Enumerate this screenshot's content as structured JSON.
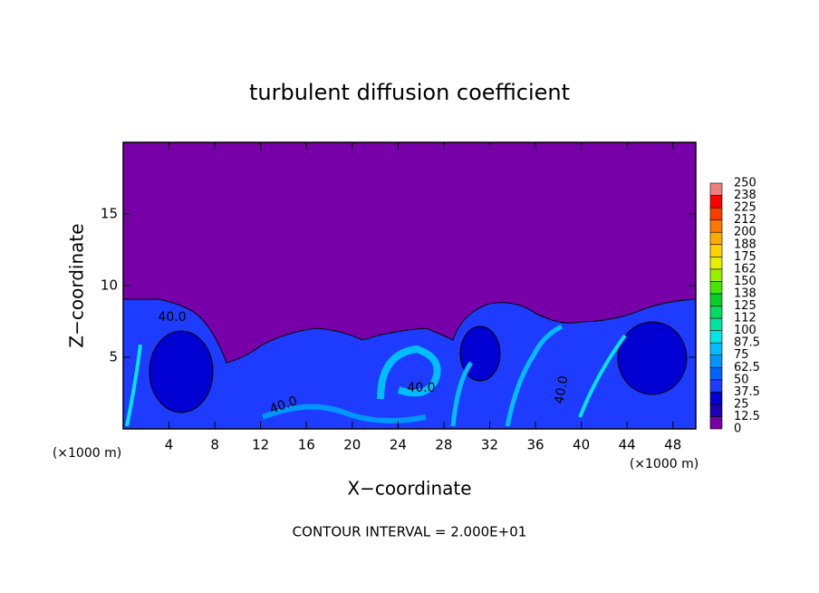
{
  "chart_data": {
    "type": "contour",
    "title": "turbulent diffusion coefficient",
    "x_label": "X−coordinate",
    "y_label": "Z−coordinate",
    "x_unit_left": "(×1000 m)",
    "x_unit_right": "(×1000 m)",
    "footer": "CONTOUR INTERVAL = 2.000E+01",
    "contour_labels": [
      "40.0",
      "40.0",
      "40.0",
      "40.0"
    ],
    "xlim": [
      0,
      50
    ],
    "xticks": [
      4,
      8,
      12,
      16,
      20,
      24,
      28,
      32,
      36,
      40,
      44,
      48
    ],
    "ylim": [
      0,
      20
    ],
    "yticks": [
      5,
      10,
      15
    ],
    "colorbar_levels": [
      0,
      12.5,
      25,
      37.5,
      50,
      62.5,
      75,
      87.5,
      100,
      {
        "value": 112.5,
        "label": "112"
      },
      125,
      {
        "value": 137.5,
        "label": "138"
      },
      150,
      {
        "value": 162.5,
        "label": "162"
      },
      175,
      {
        "value": 187.5,
        "label": "188"
      },
      200,
      {
        "value": 212.5,
        "label": "212"
      },
      225,
      {
        "value": 237.5,
        "label": "238"
      },
      250
    ],
    "colorbar_colors": [
      "#7800a8",
      "#1e00b4",
      "#0000d2",
      "#1e3cff",
      "#0064ff",
      "#0096ff",
      "#00beff",
      "#00e6e6",
      "#00e6a0",
      "#00dc64",
      "#00d228",
      "#46e600",
      "#96f000",
      "#e6f000",
      "#ffd200",
      "#ffaa00",
      "#ff7800",
      "#ff3c00",
      "#ff0000",
      "#f08080"
    ]
  }
}
